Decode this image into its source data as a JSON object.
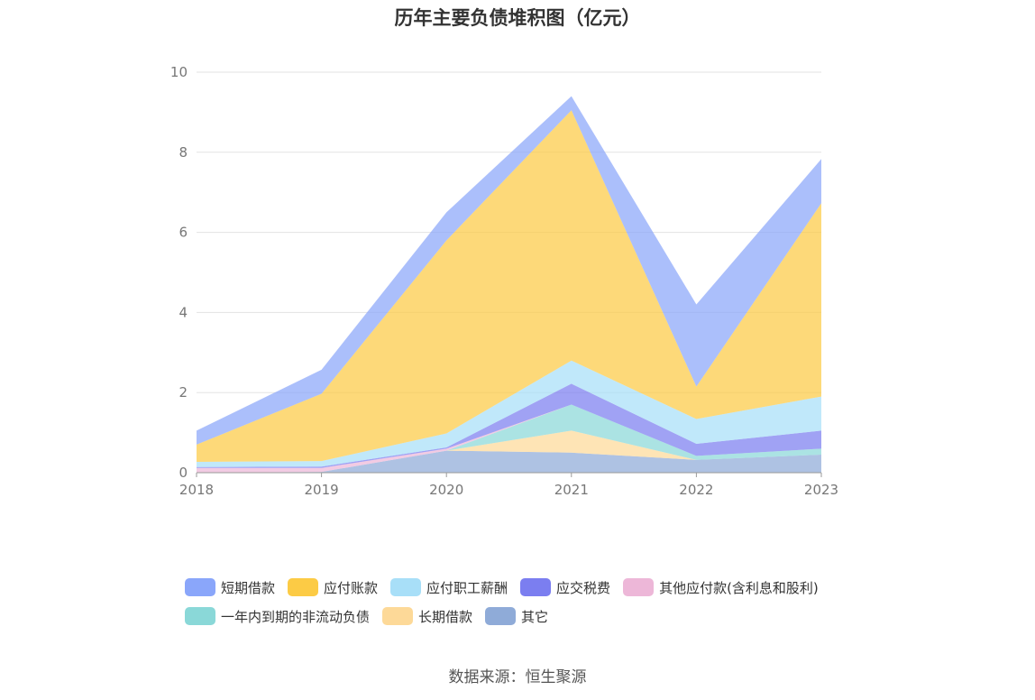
{
  "chart_data": {
    "type": "area",
    "stacked": true,
    "title": "历年主要负债堆积图（亿元）",
    "xlabel": "",
    "ylabel": "",
    "x": [
      "2018",
      "2019",
      "2020",
      "2021",
      "2022",
      "2023"
    ],
    "ylim": [
      0,
      10
    ],
    "yticks": [
      "0",
      "2",
      "4",
      "6",
      "8",
      "10"
    ],
    "grid": true,
    "legend_position": "bottom",
    "series": [
      {
        "name": "其它",
        "color": "#8fabd8",
        "values": [
          0.0,
          0.02,
          0.55,
          0.5,
          0.32,
          0.45
        ]
      },
      {
        "name": "长期借款",
        "color": "#fdd998",
        "values": [
          0.0,
          0.0,
          0.0,
          0.55,
          0.0,
          0.0
        ]
      },
      {
        "name": "一年内到期的非流动负债",
        "color": "#8ad8d8",
        "values": [
          0.0,
          0.0,
          0.0,
          0.65,
          0.1,
          0.15
        ]
      },
      {
        "name": "其他应付款(含利息和股利)",
        "color": "#edb7d8",
        "values": [
          0.12,
          0.1,
          0.05,
          0.0,
          0.0,
          0.0
        ]
      },
      {
        "name": "应交税费",
        "color": "#7b7ef0",
        "values": [
          0.02,
          0.03,
          0.03,
          0.52,
          0.3,
          0.45
        ]
      },
      {
        "name": "应付职工薪酬",
        "color": "#a8dff8",
        "values": [
          0.13,
          0.14,
          0.35,
          0.58,
          0.62,
          0.85
        ]
      },
      {
        "name": "应付账款",
        "color": "#fccb45",
        "values": [
          0.43,
          1.68,
          4.82,
          6.25,
          0.81,
          4.83
        ]
      },
      {
        "name": "短期借款",
        "color": "#8aa6fa",
        "values": [
          0.35,
          0.6,
          0.7,
          0.35,
          2.05,
          1.1
        ]
      }
    ]
  },
  "legend_order": [
    "短期借款",
    "应付账款",
    "应付职工薪酬",
    "应交税费",
    "其他应付款(含利息和股利)",
    "一年内到期的非流动负债",
    "长期借款",
    "其它"
  ],
  "source": "数据来源：恒生聚源"
}
